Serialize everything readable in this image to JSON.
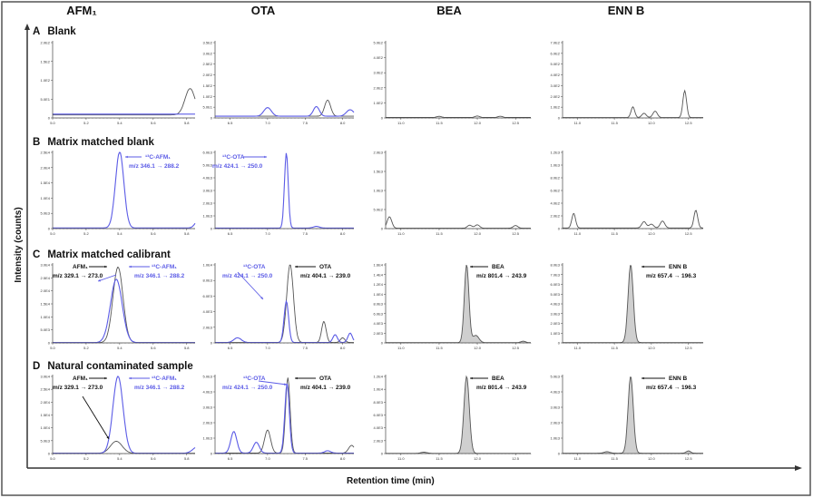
{
  "columns": [
    "AFM₁",
    "OTA",
    "BEA",
    "ENN B"
  ],
  "rows": [
    {
      "letter": "A",
      "label": "Blank"
    },
    {
      "letter": "B",
      "label": "Matrix matched blank"
    },
    {
      "letter": "C",
      "label": "Matrix matched calibrant"
    },
    {
      "letter": "D",
      "label": "Natural contaminated sample"
    }
  ],
  "ylabel": "Intensity (counts)",
  "xlabel": "Retention time (min)",
  "colors": {
    "analyte": "#555555",
    "labelled_standard": "#5b5be6",
    "fill": "#cfcfcf"
  },
  "annotations": {
    "afm1_native": "AFM₁",
    "afm1_native_mz": "m/z 329.1 → 273.0",
    "afm1_label": "¹³C-AFM₁",
    "afm1_label_mz": "m/z 346.1 → 288.2",
    "ota_label": "¹³C-OTA",
    "ota_label_mz": "m/z 424.1 → 250.0",
    "ota_native": "OTA",
    "ota_native_mz": "m/z 404.1 → 239.0",
    "bea": "BEA",
    "bea_mz": "m/z 801.4 → 243.9",
    "ennb": "ENN B",
    "ennb_mz": "m/z 657.4 → 196.3"
  },
  "chart_data": {
    "type": "line",
    "grid": false,
    "axes": {
      "AFM1": {
        "xlim": [
          5.0,
          5.85
        ],
        "xticks": [
          "5.0",
          "5.2",
          "5.4",
          "5.6",
          "5.8"
        ]
      },
      "OTA": {
        "xlim": [
          6.3,
          8.15
        ],
        "xticks": [
          "6.5",
          "7.0",
          "7.5",
          "8.0"
        ]
      },
      "BEA": {
        "xlim": [
          10.8,
          12.7
        ],
        "xticks": [
          "11.0",
          "11.5",
          "12.0",
          "12.5"
        ]
      },
      "ENNB": {
        "xlim": [
          10.8,
          12.7
        ],
        "xticks": [
          "11.0",
          "11.5",
          "12.0",
          "12.5"
        ]
      }
    },
    "panels": [
      {
        "row": "A",
        "col": "AFM1",
        "ylim": [
          0,
          200
        ],
        "yticks": [
          "0",
          "5.0E1",
          "1.0E2",
          "1.5E2",
          "2.0E2"
        ],
        "traces": [
          {
            "color": "analyte",
            "baseline": 8,
            "peaks": [
              [
                5.82,
                70,
                0.03
              ]
            ]
          },
          {
            "color": "labelled_standard",
            "baseline": 10,
            "peaks": []
          }
        ]
      },
      {
        "row": "A",
        "col": "OTA",
        "ylim": [
          0,
          350
        ],
        "yticks": [
          "0",
          "5.0E1",
          "1.0E2",
          "1.5E2",
          "2.0E2",
          "2.5E2",
          "3.0E2",
          "3.5E2"
        ],
        "traces": [
          {
            "color": "analyte",
            "baseline": 8,
            "peaks": [
              [
                7.8,
                75,
                0.04
              ]
            ]
          },
          {
            "color": "labelled_standard",
            "baseline": 8,
            "peaks": [
              [
                7.0,
                40,
                0.05
              ],
              [
                7.65,
                45,
                0.04
              ],
              [
                8.1,
                30,
                0.05
              ]
            ]
          }
        ]
      },
      {
        "row": "A",
        "col": "BEA",
        "ylim": [
          0,
          500
        ],
        "yticks": [
          "0",
          "1.0E2",
          "2.0E2",
          "3.0E2",
          "4.0E2",
          "5.0E2"
        ],
        "traces": [
          {
            "color": "analyte",
            "baseline": 3,
            "peaks": [
              [
                11.5,
                8,
                0.03
              ],
              [
                12.0,
                10,
                0.03
              ],
              [
                12.3,
                8,
                0.03
              ]
            ]
          }
        ]
      },
      {
        "row": "A",
        "col": "ENNB",
        "ylim": [
          0,
          700
        ],
        "yticks": [
          "0",
          "1.0E2",
          "2.0E2",
          "3.0E2",
          "4.0E2",
          "5.0E2",
          "6.0E2",
          "7.0E2"
        ],
        "traces": [
          {
            "color": "analyte",
            "baseline": 3,
            "peaks": [
              [
                11.75,
                100,
                0.025
              ],
              [
                11.9,
                40,
                0.03
              ],
              [
                12.05,
                60,
                0.03
              ],
              [
                12.45,
                250,
                0.025
              ]
            ]
          }
        ]
      },
      {
        "row": "B",
        "col": "AFM1",
        "ylim": [
          0,
          25000
        ],
        "yticks": [
          "0",
          "5.0E3",
          "1.0E4",
          "1.5E4",
          "2.0E4",
          "2.5E4"
        ],
        "traces": [
          {
            "color": "labelled_standard",
            "baseline": 200,
            "peaks": [
              [
                5.4,
                25000,
                0.025
              ],
              [
                5.87,
                2500,
                0.02
              ]
            ]
          }
        ]
      },
      {
        "row": "B",
        "col": "OTA",
        "ylim": [
          0,
          7000
        ],
        "yticks": [
          "0",
          "1.0E3",
          "2.0E3",
          "3.0E3",
          "4.0E3",
          "5.0E3",
          "6.0E3"
        ],
        "traces": [
          {
            "color": "labelled_standard",
            "baseline": 50,
            "peaks": [
              [
                7.25,
                6900,
                0.025
              ],
              [
                7.65,
                150,
                0.04
              ]
            ]
          }
        ]
      },
      {
        "row": "B",
        "col": "BEA",
        "ylim": [
          0,
          2000
        ],
        "yticks": [
          "0",
          "5.0E2",
          "1.0E3",
          "1.5E3",
          "2.0E3"
        ],
        "traces": [
          {
            "color": "analyte",
            "baseline": 10,
            "peaks": [
              [
                10.85,
                300,
                0.03
              ],
              [
                11.9,
                80,
                0.03
              ],
              [
                12.0,
                90,
                0.03
              ],
              [
                12.5,
                70,
                0.03
              ]
            ]
          }
        ]
      },
      {
        "row": "B",
        "col": "ENNB",
        "ylim": [
          0,
          1200
        ],
        "yticks": [
          "0",
          "2.0E2",
          "4.0E2",
          "6.0E2",
          "8.0E2",
          "1.0E3",
          "1.2E3"
        ],
        "traces": [
          {
            "color": "analyte",
            "baseline": 10,
            "peaks": [
              [
                10.95,
                230,
                0.025
              ],
              [
                11.9,
                100,
                0.03
              ],
              [
                12.0,
                60,
                0.03
              ],
              [
                12.15,
                110,
                0.03
              ],
              [
                12.6,
                280,
                0.025
              ]
            ]
          }
        ]
      },
      {
        "row": "C",
        "col": "AFM1",
        "ylim": [
          0,
          32000
        ],
        "yticks": [
          "0",
          "5.0E3",
          "1.0E4",
          "1.5E4",
          "2.0E4",
          "2.5E4",
          "3.0E4"
        ],
        "traces": [
          {
            "color": "analyte",
            "baseline": 100,
            "peaks": [
              [
                5.39,
                31000,
                0.03
              ]
            ]
          },
          {
            "color": "labelled_standard",
            "baseline": 100,
            "peaks": [
              [
                5.38,
                26000,
                0.035
              ]
            ]
          }
        ]
      },
      {
        "row": "C",
        "col": "OTA",
        "ylim": [
          0,
          10000
        ],
        "yticks": [
          "0",
          "2.0E3",
          "4.0E3",
          "6.0E3",
          "8.0E3",
          "1.0E4"
        ],
        "traces": [
          {
            "color": "analyte",
            "baseline": 50,
            "peaks": [
              [
                7.3,
                10000,
                0.045
              ],
              [
                7.75,
                2700,
                0.03
              ],
              [
                8.0,
                600,
                0.03
              ]
            ]
          },
          {
            "color": "labelled_standard",
            "baseline": 50,
            "peaks": [
              [
                6.6,
                600,
                0.05
              ],
              [
                7.25,
                5300,
                0.03
              ],
              [
                7.9,
                1000,
                0.03
              ],
              [
                8.1,
                1200,
                0.03
              ]
            ]
          }
        ]
      },
      {
        "row": "C",
        "col": "BEA",
        "ylim": [
          0,
          16000
        ],
        "yticks": [
          "0",
          "2.0E3",
          "4.0E3",
          "6.0E3",
          "8.0E3",
          "1.0E4",
          "1.2E4",
          "1.4E4",
          "1.6E4"
        ],
        "traces": [
          {
            "color": "analyte",
            "fill": true,
            "baseline": 50,
            "peaks": [
              [
                11.86,
                16000,
                0.03
              ],
              [
                11.98,
                1500,
                0.04
              ],
              [
                12.6,
                300,
                0.03
              ]
            ]
          }
        ]
      },
      {
        "row": "C",
        "col": "ENNB",
        "ylim": [
          0,
          8000
        ],
        "yticks": [
          "0",
          "1.0E3",
          "2.0E3",
          "3.0E3",
          "4.0E3",
          "5.0E3",
          "6.0E3",
          "7.0E3",
          "8.0E3"
        ],
        "traces": [
          {
            "color": "analyte",
            "fill": true,
            "baseline": 30,
            "peaks": [
              [
                11.72,
                8000,
                0.035
              ]
            ]
          }
        ]
      },
      {
        "row": "D",
        "col": "AFM1",
        "ylim": [
          0,
          32000
        ],
        "yticks": [
          "0",
          "5.0E3",
          "1.0E4",
          "1.5E4",
          "2.0E4",
          "2.5E4",
          "3.0E4"
        ],
        "traces": [
          {
            "color": "analyte",
            "baseline": 100,
            "peaks": [
              [
                5.38,
                5000,
                0.035
              ]
            ]
          },
          {
            "color": "labelled_standard",
            "baseline": 100,
            "peaks": [
              [
                5.39,
                32000,
                0.03
              ],
              [
                5.87,
                3000,
                0.03
              ]
            ]
          }
        ]
      },
      {
        "row": "D",
        "col": "OTA",
        "ylim": [
          0,
          5000
        ],
        "yticks": [
          "0",
          "1.0E3",
          "2.0E3",
          "3.0E3",
          "4.0E3",
          "5.0E3"
        ],
        "traces": [
          {
            "color": "analyte",
            "baseline": 30,
            "peaks": [
              [
                7.0,
                1500,
                0.04
              ],
              [
                7.27,
                4900,
                0.03
              ],
              [
                8.12,
                500,
                0.04
              ]
            ]
          },
          {
            "color": "labelled_standard",
            "baseline": 30,
            "peaks": [
              [
                6.55,
                1400,
                0.04
              ],
              [
                6.85,
                700,
                0.04
              ],
              [
                7.26,
                4500,
                0.03
              ],
              [
                7.8,
                150,
                0.04
              ]
            ]
          }
        ]
      },
      {
        "row": "D",
        "col": "BEA",
        "ylim": [
          0,
          13000
        ],
        "yticks": [
          "0",
          "2.0E3",
          "4.0E3",
          "6.0E3",
          "8.0E3",
          "1.0E4",
          "1.2E4"
        ],
        "traces": [
          {
            "color": "analyte",
            "fill": true,
            "baseline": 30,
            "peaks": [
              [
                11.86,
                13000,
                0.035
              ],
              [
                11.3,
                200,
                0.04
              ]
            ]
          }
        ]
      },
      {
        "row": "D",
        "col": "ENNB",
        "ylim": [
          0,
          5000
        ],
        "yticks": [
          "0",
          "1.0E3",
          "2.0E3",
          "3.0E3",
          "4.0E3",
          "5.0E3"
        ],
        "traces": [
          {
            "color": "analyte",
            "fill": true,
            "baseline": 20,
            "peaks": [
              [
                11.72,
                5000,
                0.035
              ],
              [
                11.4,
                100,
                0.04
              ],
              [
                12.5,
                150,
                0.03
              ]
            ]
          }
        ]
      }
    ]
  }
}
